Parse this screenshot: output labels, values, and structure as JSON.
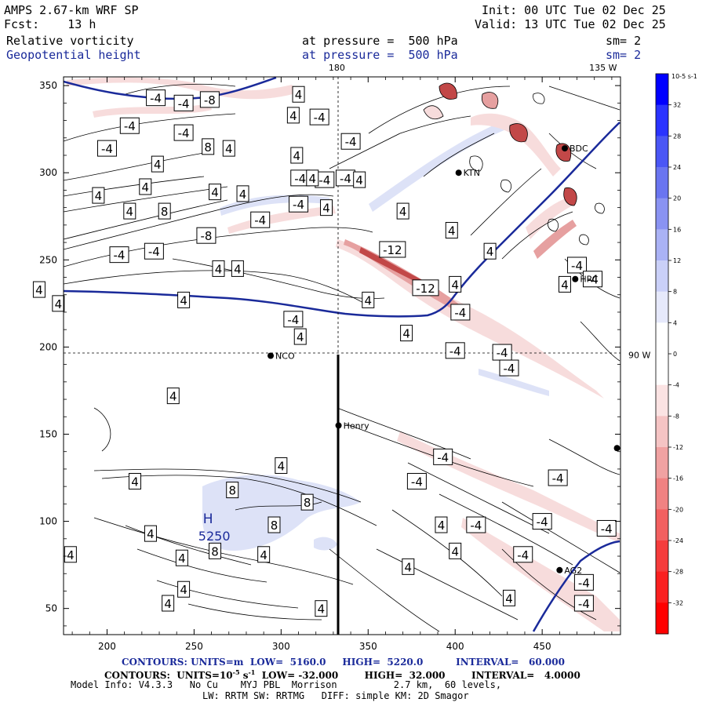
{
  "header": {
    "model": "AMPS 2.67-km WRF SP",
    "fcst_label": "Fcst:",
    "fcst_value": "13 h",
    "init": "Init: 00 UTC Tue 02 Dec 25",
    "valid": "Valid: 13 UTC Tue 02 Dec 25",
    "field1_name": "Relative vorticity",
    "field1_level": "at pressure =  500 hPa",
    "field1_sm": "sm= 2",
    "field2_name": "Geopotential height",
    "field2_level": "at pressure =  500 hPa",
    "field2_sm": "sm= 2"
  },
  "chart_data": {
    "type": "contour_map",
    "x_ticks": [
      200,
      250,
      300,
      350,
      400,
      450
    ],
    "y_ticks": [
      50,
      100,
      150,
      200,
      250,
      300,
      350
    ],
    "xlim": [
      175,
      495
    ],
    "ylim": [
      35,
      355
    ],
    "meridians": [
      {
        "label": "180",
        "x": 332
      },
      {
        "label": "135 W",
        "x": 485
      }
    ],
    "parallels": [
      {
        "label": "90 W",
        "y": 196
      }
    ],
    "stations": [
      {
        "name": "NCO",
        "x": 294,
        "y": 195
      },
      {
        "name": "KTN",
        "x": 402,
        "y": 300
      },
      {
        "name": "Henry",
        "x": 333,
        "y": 155
      },
      {
        "name": "BDC",
        "x": 463,
        "y": 314
      },
      {
        "name": "HRC",
        "x": 469,
        "y": 239
      },
      {
        "name": "AG2",
        "x": 460,
        "y": 72
      },
      {
        "name": "",
        "x": 493,
        "y": 142
      }
    ],
    "height_high": {
      "label": "H",
      "value": "5250",
      "x": 258,
      "y": 90
    },
    "vort_labels": [
      {
        "t": "-4",
        "x": 228,
        "y": 343
      },
      {
        "t": "-4",
        "x": 244,
        "y": 340
      },
      {
        "t": "-8",
        "x": 259,
        "y": 342
      },
      {
        "t": "4",
        "x": 310,
        "y": 345
      },
      {
        "t": "-4",
        "x": 213,
        "y": 327
      },
      {
        "t": "-4",
        "x": 244,
        "y": 323
      },
      {
        "t": "4",
        "x": 307,
        "y": 333
      },
      {
        "t": "-4",
        "x": 322,
        "y": 332
      },
      {
        "t": "-4",
        "x": 200,
        "y": 314
      },
      {
        "t": "8",
        "x": 258,
        "y": 315
      },
      {
        "t": "4",
        "x": 270,
        "y": 314
      },
      {
        "t": "-4",
        "x": 340,
        "y": 318
      },
      {
        "t": "4",
        "x": 229,
        "y": 305
      },
      {
        "t": "4",
        "x": 309,
        "y": 310
      },
      {
        "t": "-4",
        "x": 311,
        "y": 297
      },
      {
        "t": "-4",
        "x": 325,
        "y": 296
      },
      {
        "t": "-4",
        "x": 337,
        "y": 297
      },
      {
        "t": "4",
        "x": 318,
        "y": 297
      },
      {
        "t": "4",
        "x": 345,
        "y": 296
      },
      {
        "t": "4",
        "x": 195,
        "y": 287
      },
      {
        "t": "4",
        "x": 222,
        "y": 292
      },
      {
        "t": "4",
        "x": 262,
        "y": 289
      },
      {
        "t": "4",
        "x": 278,
        "y": 288
      },
      {
        "t": "4",
        "x": 213,
        "y": 278
      },
      {
        "t": "8",
        "x": 233,
        "y": 278
      },
      {
        "t": "-4",
        "x": 310,
        "y": 282
      },
      {
        "t": "4",
        "x": 326,
        "y": 280
      },
      {
        "t": "-4",
        "x": 288,
        "y": 273
      },
      {
        "t": "4",
        "x": 370,
        "y": 278
      },
      {
        "t": "-8",
        "x": 257,
        "y": 264
      },
      {
        "t": "4",
        "x": 398,
        "y": 267
      },
      {
        "t": "-12",
        "x": 364,
        "y": 256
      },
      {
        "t": "-4",
        "x": 207,
        "y": 253
      },
      {
        "t": "-4",
        "x": 227,
        "y": 255
      },
      {
        "t": "4",
        "x": 264,
        "y": 245
      },
      {
        "t": "4",
        "x": 275,
        "y": 245
      },
      {
        "t": "4",
        "x": 420,
        "y": 255
      },
      {
        "t": "-4",
        "x": 470,
        "y": 247
      },
      {
        "t": "4",
        "x": 161,
        "y": 233
      },
      {
        "t": "-12",
        "x": 383,
        "y": 234
      },
      {
        "t": "4",
        "x": 400,
        "y": 236
      },
      {
        "t": "4",
        "x": 463,
        "y": 236
      },
      {
        "t": "-4",
        "x": 479,
        "y": 239
      },
      {
        "t": "4",
        "x": 172,
        "y": 225
      },
      {
        "t": "4",
        "x": 244,
        "y": 227
      },
      {
        "t": "4",
        "x": 350,
        "y": 227
      },
      {
        "t": "-4",
        "x": 403,
        "y": 220
      },
      {
        "t": "-4",
        "x": 307,
        "y": 216
      },
      {
        "t": "4",
        "x": 372,
        "y": 208
      },
      {
        "t": "4",
        "x": 311,
        "y": 206
      },
      {
        "t": "-4",
        "x": 400,
        "y": 198
      },
      {
        "t": "-4",
        "x": 427,
        "y": 197
      },
      {
        "t": "-4",
        "x": 431,
        "y": 188
      },
      {
        "t": "4",
        "x": 238,
        "y": 172
      },
      {
        "t": "-4",
        "x": 393,
        "y": 137
      },
      {
        "t": "4",
        "x": 300,
        "y": 132
      },
      {
        "t": "4",
        "x": 216,
        "y": 123
      },
      {
        "t": "-4",
        "x": 378,
        "y": 123
      },
      {
        "t": "-4",
        "x": 459,
        "y": 125
      },
      {
        "t": "8",
        "x": 272,
        "y": 118
      },
      {
        "t": "8",
        "x": 315,
        "y": 111
      },
      {
        "t": "8",
        "x": 296,
        "y": 98
      },
      {
        "t": "-4",
        "x": 412,
        "y": 98
      },
      {
        "t": "-4",
        "x": 450,
        "y": 100
      },
      {
        "t": "4",
        "x": 392,
        "y": 98
      },
      {
        "t": "-4",
        "x": 487,
        "y": 96
      },
      {
        "t": "4",
        "x": 225,
        "y": 93
      },
      {
        "t": "8",
        "x": 262,
        "y": 83
      },
      {
        "t": "4",
        "x": 179,
        "y": 81
      },
      {
        "t": "4",
        "x": 290,
        "y": 81
      },
      {
        "t": "4",
        "x": 400,
        "y": 83
      },
      {
        "t": "-4",
        "x": 439,
        "y": 81
      },
      {
        "t": "4",
        "x": 243,
        "y": 79
      },
      {
        "t": "4",
        "x": 373,
        "y": 74
      },
      {
        "t": "4",
        "x": 244,
        "y": 61
      },
      {
        "t": "-4",
        "x": 474,
        "y": 65
      },
      {
        "t": "4",
        "x": 431,
        "y": 56
      },
      {
        "t": "4",
        "x": 235,
        "y": 53
      },
      {
        "t": "-4",
        "x": 474,
        "y": 53
      },
      {
        "t": "4",
        "x": 323,
        "y": 50
      }
    ],
    "colorbar": {
      "unit": "10-5 s-1",
      "ticks": [
        "32",
        "28",
        "24",
        "20",
        "16",
        "12",
        "8",
        "4",
        "0",
        "-4",
        "-8",
        "-12",
        "-16",
        "-20",
        "-24",
        "-28",
        "-32"
      ]
    }
  },
  "footer": {
    "line1_a": "CONTOURS: UNITS=m  LOW=  5160.0",
    "line1_b": "HIGH=  5220.0",
    "line1_c": "INTERVAL=   60.000",
    "line2_a": "CONTOURS:  UNITS=10",
    "line2_exp": "-5",
    "line2_s": " s",
    "line2_exp2": "-1",
    "line2_b": "  LOW= -32.000",
    "line2_c": "HIGH=  32.000",
    "line2_d": "INTERVAL=   4.0000",
    "line3": "Model Info: V4.3.3   No Cu    MYJ PBL  Morrison          2.7 km,  60 levels,",
    "line4": "LW: RRTM SW: RRTMG   DIFF: simple KM: 2D Smagor"
  },
  "colors": {
    "height": "#1a2a9a",
    "pos_light": "#dde2f7",
    "neg_light": "#f7dcdc",
    "neg_mid": "#e6a0a0",
    "neg_dark": "#c24848"
  }
}
